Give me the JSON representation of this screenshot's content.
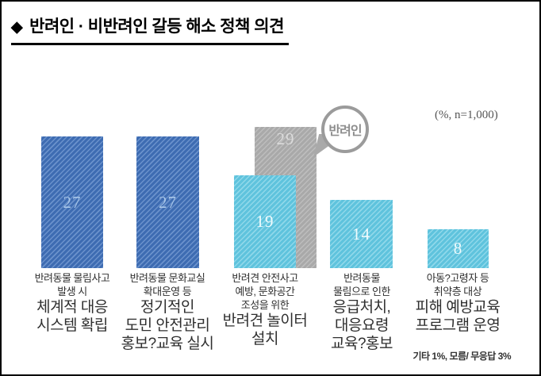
{
  "page": {
    "title_bullet": "◆",
    "title": "반려인 · 비반려인 갈등 해소 정책 의견"
  },
  "chart_data": {
    "type": "bar",
    "title": "반려인 · 비반려인 갈등 해소 정책 의견",
    "unit": "%",
    "sample_n": "1,000",
    "unit_note": "(%, n=1,000)",
    "ylim": [
      0,
      32
    ],
    "gridlines": false,
    "footnote": "기타 1%, 모름/ 무응답 3%",
    "colors": {
      "blue": "#3e6cb2",
      "teal": "#5fc3dd",
      "gray": "#a9a9a9",
      "blue_value_text": "#a9c7e9",
      "light_value_text": "#f0fbfd"
    },
    "bars": [
      {
        "value": 27,
        "color_key": "blue"
      },
      {
        "value": 27,
        "color_key": "blue"
      },
      {
        "value": 19,
        "color_key": "teal"
      },
      {
        "value": 14,
        "color_key": "teal"
      },
      {
        "value": 8,
        "color_key": "teal"
      }
    ],
    "overlay": {
      "name": "반려인",
      "value": 29,
      "over_category": 2,
      "color_key": "gray"
    },
    "categories": [
      {
        "small": [
          "반려동물 물림사고",
          "발생 시"
        ],
        "large": [
          "체계적 대응",
          "시스템 확립"
        ]
      },
      {
        "small": [
          "반려동물 문화교실",
          "확대운영 등"
        ],
        "large": [
          "정기적인",
          "도민 안전관리",
          "홍보?교육 실시"
        ]
      },
      {
        "small": [
          "반려견 안전사고",
          "예방, 문화공간",
          "조성을 위한"
        ],
        "large": [
          "반려견 놀이터",
          "설치"
        ]
      },
      {
        "small": [
          "반려동물",
          "물림으로 인한"
        ],
        "large": [
          "응급처치,",
          "대응요령",
          "교육?홍보"
        ]
      },
      {
        "small": [
          "아동?고령자 등",
          "취약층 대상"
        ],
        "large": [
          "피해 예방교육",
          "프로그램 운영"
        ]
      }
    ]
  }
}
